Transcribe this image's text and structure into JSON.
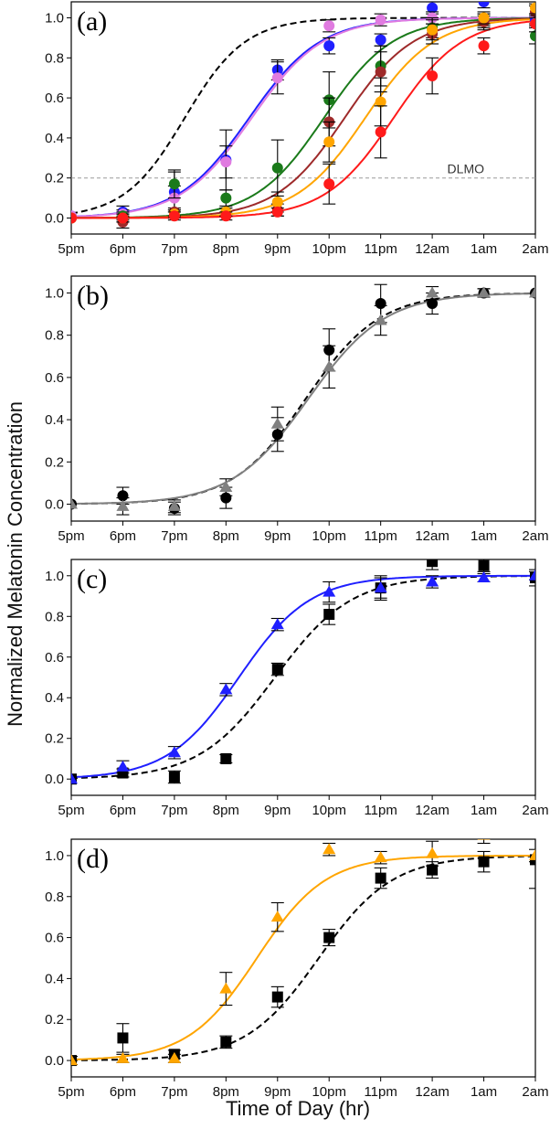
{
  "figure": {
    "ylabel": "Normalized Melatonin Concentration",
    "xlabel": "Time of Day (hr)"
  },
  "chart_data": [
    {
      "panel": "(a)",
      "type": "scatter",
      "categories": [
        "5pm",
        "6pm",
        "7pm",
        "8pm",
        "9pm",
        "10pm",
        "11pm",
        "12am",
        "1am",
        "2am"
      ],
      "x": [
        0,
        1,
        2,
        3,
        4,
        5,
        6,
        7,
        8,
        9
      ],
      "xlim": [
        0,
        9
      ],
      "ylim": [
        -0.08,
        1.08
      ],
      "yticks": [
        0.0,
        0.2,
        0.4,
        0.6,
        0.8,
        1.0
      ],
      "ytick_labels": [
        "0.0",
        "0.2",
        "0.4",
        "0.6",
        "0.8",
        "1.0"
      ],
      "reference_line": {
        "y": 0.2,
        "label": "DLMO"
      },
      "series": [
        {
          "name": "reference (dashed)",
          "color": "#000000",
          "dashed": true,
          "marker": "none",
          "values": [],
          "errors": [],
          "curve": {
            "mid": 2.2,
            "k": 1.7
          }
        },
        {
          "name": "blue",
          "color": "#1f1fff",
          "marker": "circle",
          "values": [
            0.01,
            0.03,
            0.13,
            0.29,
            0.74,
            0.86,
            0.89,
            1.05,
            1.08,
            0.99
          ],
          "errors": [
            0.01,
            0.03,
            0.1,
            0.15,
            0.05,
            0.04,
            0.03,
            0.03,
            0.03,
            0.03
          ],
          "curve": {
            "mid": 3.45,
            "k": 1.45
          }
        },
        {
          "name": "violet",
          "color": "#e07be0",
          "marker": "circle",
          "values": [
            0.01,
            0.02,
            0.1,
            0.28,
            0.7,
            0.96,
            0.99,
            1.0,
            0.99,
            1.02
          ],
          "errors": [
            0.01,
            0.02,
            0.06,
            0.08,
            0.08,
            0.03,
            0.03,
            0.03,
            0.03,
            0.05
          ],
          "curve": {
            "mid": 3.5,
            "k": 1.45
          }
        },
        {
          "name": "green",
          "color": "#1a7a1a",
          "marker": "circle",
          "values": [
            0.0,
            0.01,
            0.17,
            0.1,
            0.25,
            0.59,
            0.76,
            0.95,
            0.98,
            0.91
          ],
          "errors": [
            0.01,
            0.02,
            0.07,
            0.04,
            0.14,
            0.14,
            0.1,
            0.05,
            0.04,
            0.04
          ],
          "curve": {
            "mid": 4.9,
            "k": 1.5
          }
        },
        {
          "name": "brown",
          "color": "#9e2a2a",
          "marker": "circle",
          "values": [
            0.0,
            -0.02,
            0.03,
            0.03,
            0.04,
            0.48,
            0.73,
            0.92,
            0.98,
            1.03
          ],
          "errors": [
            0.01,
            0.03,
            0.02,
            0.02,
            0.03,
            0.12,
            0.1,
            0.05,
            0.03,
            0.03
          ],
          "curve": {
            "mid": 5.3,
            "k": 1.5
          }
        },
        {
          "name": "orange",
          "color": "#ffa500",
          "marker": "circle",
          "values": [
            0.0,
            0.0,
            0.02,
            0.03,
            0.08,
            0.38,
            0.58,
            0.94,
            1.0,
            1.05
          ],
          "errors": [
            0.01,
            0.02,
            0.02,
            0.02,
            0.05,
            0.1,
            0.12,
            0.05,
            0.03,
            0.03
          ],
          "curve": {
            "mid": 5.7,
            "k": 1.5
          }
        },
        {
          "name": "red",
          "color": "#ff1a1a",
          "marker": "circle",
          "values": [
            0.0,
            0.0,
            0.01,
            0.01,
            0.03,
            0.17,
            0.43,
            0.71,
            0.86,
            0.97
          ],
          "errors": [
            0.01,
            0.02,
            0.02,
            0.02,
            0.02,
            0.1,
            0.13,
            0.09,
            0.04,
            0.04
          ],
          "curve": {
            "mid": 6.25,
            "k": 1.5
          }
        }
      ]
    },
    {
      "panel": "(b)",
      "type": "scatter",
      "categories": [
        "5pm",
        "6pm",
        "7pm",
        "8pm",
        "9pm",
        "10pm",
        "11pm",
        "12am",
        "1am",
        "2am"
      ],
      "x": [
        0,
        1,
        2,
        3,
        4,
        5,
        6,
        7,
        8,
        9
      ],
      "xlim": [
        0,
        9
      ],
      "ylim": [
        -0.08,
        1.08
      ],
      "yticks": [
        0.0,
        0.2,
        0.4,
        0.6,
        0.8,
        1.0
      ],
      "ytick_labels": [
        "0.0",
        "0.2",
        "0.4",
        "0.6",
        "0.8",
        "1.0"
      ],
      "series": [
        {
          "name": "black",
          "color": "#000000",
          "dashed": true,
          "marker": "circle",
          "values": [
            0.0,
            0.04,
            -0.02,
            0.03,
            0.33,
            0.73,
            0.95,
            0.95,
            1.0,
            1.0
          ],
          "errors": [
            0.01,
            0.04,
            0.03,
            0.05,
            0.08,
            0.1,
            0.09,
            0.05,
            0.02,
            0.01
          ],
          "curve": {
            "mid": 4.55,
            "k": 1.4
          }
        },
        {
          "name": "gray",
          "color": "#808080",
          "dashed": false,
          "marker": "triangle",
          "values": [
            0.0,
            -0.01,
            -0.01,
            0.08,
            0.38,
            0.65,
            0.87,
            1.0,
            1.0,
            1.0
          ],
          "errors": [
            0.01,
            0.04,
            0.03,
            0.04,
            0.08,
            0.1,
            0.07,
            0.03,
            0.02,
            0.01
          ],
          "curve": {
            "mid": 4.6,
            "k": 1.35
          }
        }
      ]
    },
    {
      "panel": "(c)",
      "type": "scatter",
      "categories": [
        "5pm",
        "6pm",
        "7pm",
        "8pm",
        "9pm",
        "10pm",
        "11pm",
        "12am",
        "1am",
        "2am"
      ],
      "x": [
        0,
        1,
        2,
        3,
        4,
        5,
        6,
        7,
        8,
        9
      ],
      "xlim": [
        0,
        9
      ],
      "ylim": [
        -0.08,
        1.08
      ],
      "yticks": [
        0.0,
        0.2,
        0.4,
        0.6,
        0.8,
        1.0
      ],
      "ytick_labels": [
        "0.0",
        "0.2",
        "0.4",
        "0.6",
        "0.8",
        "1.0"
      ],
      "series": [
        {
          "name": "black",
          "color": "#000000",
          "dashed": true,
          "marker": "square",
          "values": [
            0.0,
            0.03,
            0.01,
            0.1,
            0.54,
            0.81,
            0.94,
            1.07,
            1.05,
            0.99
          ],
          "errors": [
            0.01,
            0.02,
            0.03,
            0.02,
            0.03,
            0.05,
            0.06,
            0.04,
            0.03,
            0.04
          ],
          "curve": {
            "mid": 3.95,
            "k": 1.35
          }
        },
        {
          "name": "blue",
          "color": "#1f1fff",
          "dashed": false,
          "marker": "triangle",
          "values": [
            0.0,
            0.06,
            0.13,
            0.44,
            0.76,
            0.92,
            0.94,
            0.97,
            0.99,
            1.0
          ],
          "errors": [
            0.01,
            0.03,
            0.03,
            0.03,
            0.03,
            0.05,
            0.05,
            0.03,
            0.02,
            0.02
          ],
          "curve": {
            "mid": 3.25,
            "k": 1.45
          }
        }
      ]
    },
    {
      "panel": "(d)",
      "type": "scatter",
      "categories": [
        "5pm",
        "6pm",
        "7pm",
        "8pm",
        "9pm",
        "10pm",
        "11pm",
        "12am",
        "1am",
        "2am"
      ],
      "x": [
        0,
        1,
        2,
        3,
        4,
        5,
        6,
        7,
        8,
        9
      ],
      "xlim": [
        0,
        9
      ],
      "ylim": [
        -0.08,
        1.08
      ],
      "yticks": [
        0.0,
        0.2,
        0.4,
        0.6,
        0.8,
        1.0
      ],
      "ytick_labels": [
        "0.0",
        "0.2",
        "0.4",
        "0.6",
        "0.8",
        "1.0"
      ],
      "series": [
        {
          "name": "black",
          "color": "#000000",
          "dashed": true,
          "marker": "square",
          "values": [
            0.0,
            0.11,
            0.03,
            0.09,
            0.31,
            0.6,
            0.89,
            0.93,
            0.97,
            0.98
          ],
          "errors": [
            0.02,
            0.07,
            0.02,
            0.03,
            0.05,
            0.04,
            0.05,
            0.04,
            0.05,
            0.14
          ],
          "curve": {
            "mid": 4.8,
            "k": 1.4
          }
        },
        {
          "name": "orange",
          "color": "#ffa500",
          "dashed": false,
          "marker": "triangle",
          "values": [
            0.0,
            0.01,
            0.01,
            0.35,
            0.7,
            1.03,
            0.99,
            1.01,
            1.1,
            1.0
          ],
          "errors": [
            0.01,
            0.02,
            0.02,
            0.08,
            0.07,
            0.03,
            0.03,
            0.06,
            0.04,
            0.03
          ],
          "curve": {
            "mid": 3.6,
            "k": 1.5
          }
        }
      ]
    }
  ]
}
